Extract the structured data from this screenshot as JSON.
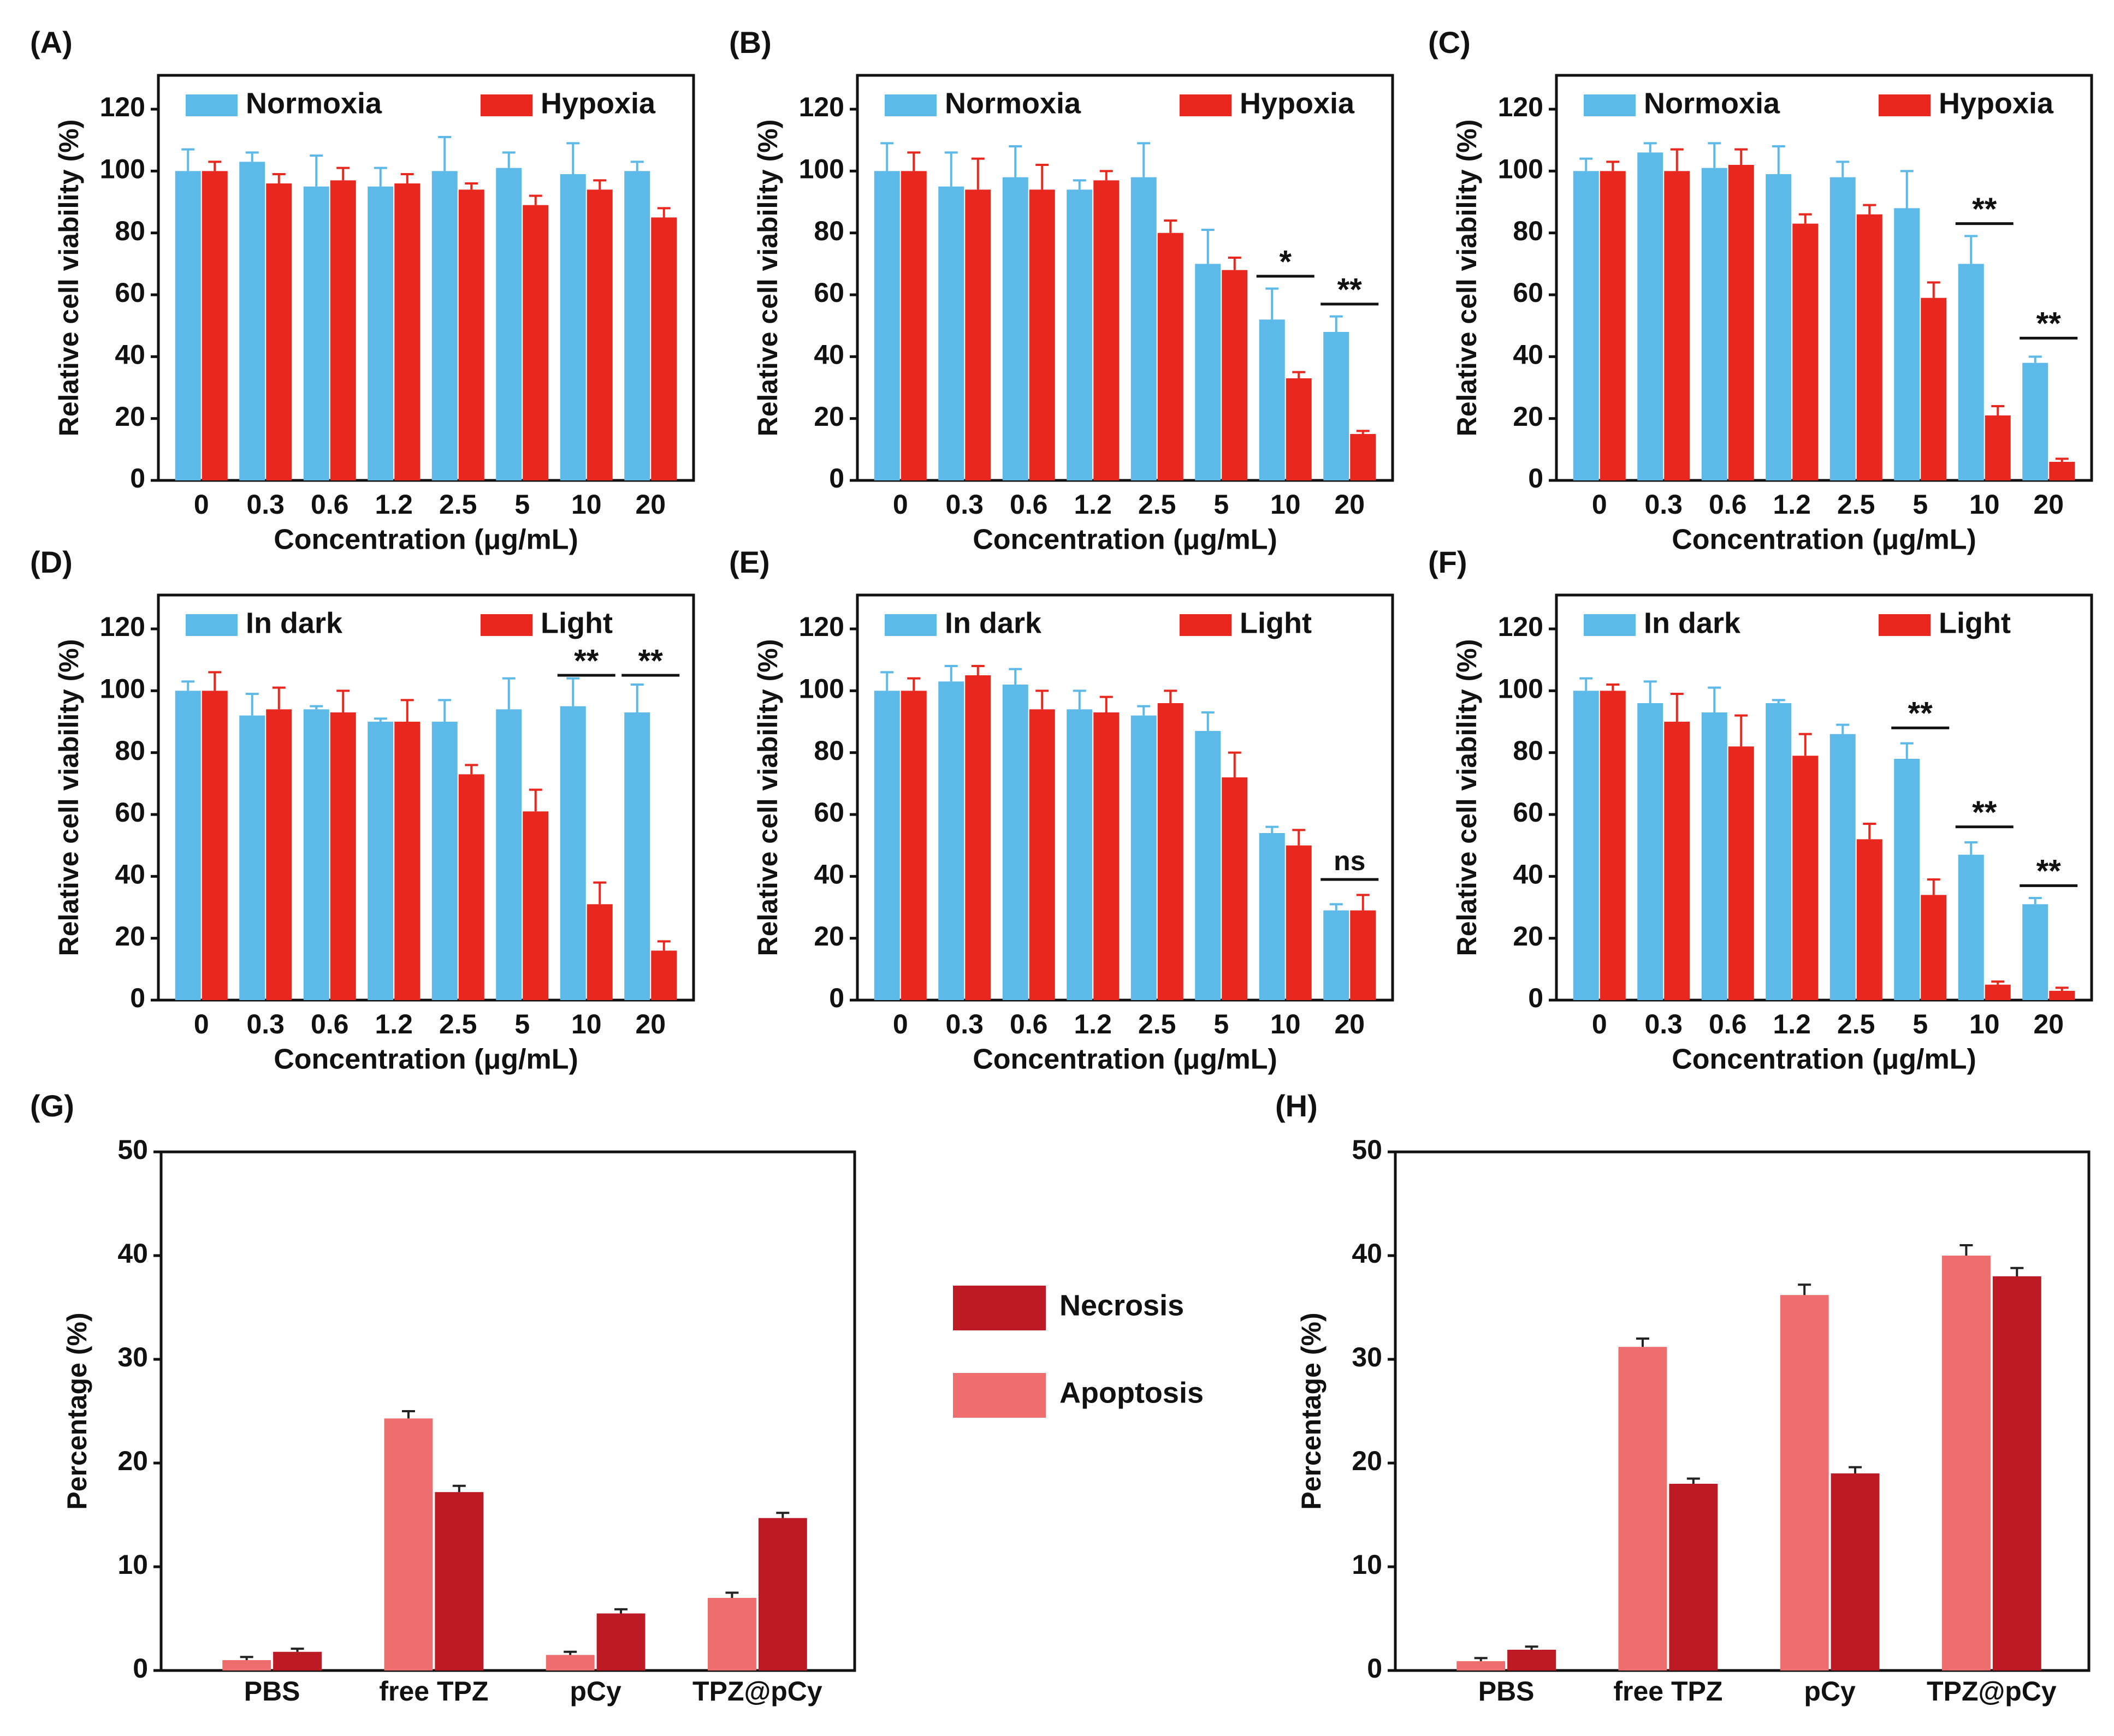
{
  "colors": {
    "normoxia": "#5DB9E8",
    "hypoxia": "#E8281F",
    "apoptosis": "#EE6E70",
    "necrosis": "#BC1A24",
    "error": "#222222"
  },
  "chart_data": [
    {
      "panel": "(A)",
      "type": "bar",
      "xlabel": "Concentration (μg/mL)",
      "ylabel": "Relative cell viability (%)",
      "ylim": [
        0,
        120
      ],
      "yticks": [
        0,
        20,
        40,
        60,
        80,
        100,
        120
      ],
      "categories": [
        "0",
        "0.3",
        "0.6",
        "1.2",
        "2.5",
        "5",
        "10",
        "20"
      ],
      "series": [
        {
          "name": "Normoxia",
          "color": "#5DB9E8",
          "values": [
            100,
            103,
            95,
            95,
            100,
            101,
            99,
            100
          ],
          "errors": [
            7,
            3,
            10,
            6,
            11,
            5,
            10,
            3
          ]
        },
        {
          "name": "Hypoxia",
          "color": "#E8281F",
          "values": [
            100,
            96,
            97,
            96,
            94,
            89,
            94,
            85
          ],
          "errors": [
            3,
            3,
            4,
            3,
            2,
            3,
            3,
            3
          ]
        }
      ],
      "legend": "top",
      "annotations": []
    },
    {
      "panel": "(B)",
      "type": "bar",
      "xlabel": "Concentration (μg/mL)",
      "ylabel": "Relative cell viability (%)",
      "ylim": [
        0,
        120
      ],
      "yticks": [
        0,
        20,
        40,
        60,
        80,
        100,
        120
      ],
      "categories": [
        "0",
        "0.3",
        "0.6",
        "1.2",
        "2.5",
        "5",
        "10",
        "20"
      ],
      "series": [
        {
          "name": "Normoxia",
          "color": "#5DB9E8",
          "values": [
            100,
            95,
            98,
            94,
            98,
            70,
            52,
            48
          ],
          "errors": [
            9,
            11,
            10,
            3,
            11,
            11,
            10,
            5
          ]
        },
        {
          "name": "Hypoxia",
          "color": "#E8281F",
          "values": [
            100,
            94,
            94,
            97,
            80,
            68,
            33,
            15
          ],
          "errors": [
            6,
            10,
            8,
            3,
            4,
            4,
            2,
            1
          ]
        }
      ],
      "legend": "top",
      "annotations": [
        {
          "index": 6,
          "text": "*",
          "y": 66
        },
        {
          "index": 7,
          "text": "**",
          "y": 57
        }
      ]
    },
    {
      "panel": "(C)",
      "type": "bar",
      "xlabel": "Concentration (μg/mL)",
      "ylabel": "Relative cell viability (%)",
      "ylim": [
        0,
        120
      ],
      "yticks": [
        0,
        20,
        40,
        60,
        80,
        100,
        120
      ],
      "categories": [
        "0",
        "0.3",
        "0.6",
        "1.2",
        "2.5",
        "5",
        "10",
        "20"
      ],
      "series": [
        {
          "name": "Normoxia",
          "color": "#5DB9E8",
          "values": [
            100,
            106,
            101,
            99,
            98,
            88,
            70,
            38
          ],
          "errors": [
            4,
            3,
            8,
            9,
            5,
            12,
            9,
            2
          ]
        },
        {
          "name": "Hypoxia",
          "color": "#E8281F",
          "values": [
            100,
            100,
            102,
            83,
            86,
            59,
            21,
            6
          ],
          "errors": [
            3,
            7,
            5,
            3,
            3,
            5,
            3,
            1
          ]
        }
      ],
      "legend": "top",
      "annotations": [
        {
          "index": 6,
          "text": "**",
          "y": 83
        },
        {
          "index": 7,
          "text": "**",
          "y": 46
        }
      ]
    },
    {
      "panel": "(D)",
      "type": "bar",
      "xlabel": "Concentration (μg/mL)",
      "ylabel": "Relative cell viability (%)",
      "ylim": [
        0,
        120
      ],
      "yticks": [
        0,
        20,
        40,
        60,
        80,
        100,
        120
      ],
      "categories": [
        "0",
        "0.3",
        "0.6",
        "1.2",
        "2.5",
        "5",
        "10",
        "20"
      ],
      "series": [
        {
          "name": "In dark",
          "color": "#5DB9E8",
          "values": [
            100,
            92,
            94,
            90,
            90,
            94,
            95,
            93
          ],
          "errors": [
            3,
            7,
            1,
            1,
            7,
            10,
            9,
            9
          ]
        },
        {
          "name": "Light",
          "color": "#E8281F",
          "values": [
            100,
            94,
            93,
            90,
            73,
            61,
            31,
            16
          ],
          "errors": [
            6,
            7,
            7,
            7,
            3,
            7,
            7,
            3
          ]
        }
      ],
      "legend": "top",
      "annotations": [
        {
          "index": 6,
          "text": "**",
          "y": 105
        },
        {
          "index": 7,
          "text": "**",
          "y": 105
        }
      ]
    },
    {
      "panel": "(E)",
      "type": "bar",
      "xlabel": "Concentration (μg/mL)",
      "ylabel": "Relative cell viability (%)",
      "ylim": [
        0,
        120
      ],
      "yticks": [
        0,
        20,
        40,
        60,
        80,
        100,
        120
      ],
      "categories": [
        "0",
        "0.3",
        "0.6",
        "1.2",
        "2.5",
        "5",
        "10",
        "20"
      ],
      "series": [
        {
          "name": "In dark",
          "color": "#5DB9E8",
          "values": [
            100,
            103,
            102,
            94,
            92,
            87,
            54,
            29
          ],
          "errors": [
            6,
            5,
            5,
            6,
            3,
            6,
            2,
            2
          ]
        },
        {
          "name": "Light",
          "color": "#E8281F",
          "values": [
            100,
            105,
            94,
            93,
            96,
            72,
            50,
            29
          ],
          "errors": [
            4,
            3,
            6,
            5,
            4,
            8,
            5,
            5
          ]
        }
      ],
      "legend": "top",
      "annotations": [
        {
          "index": 7,
          "text": "ns",
          "y": 39
        }
      ]
    },
    {
      "panel": "(F)",
      "type": "bar",
      "xlabel": "Concentration (μg/mL)",
      "ylabel": "Relative cell viability (%)",
      "ylim": [
        0,
        120
      ],
      "yticks": [
        0,
        20,
        40,
        60,
        80,
        100,
        120
      ],
      "categories": [
        "0",
        "0.3",
        "0.6",
        "1.2",
        "2.5",
        "5",
        "10",
        "20"
      ],
      "series": [
        {
          "name": "In dark",
          "color": "#5DB9E8",
          "values": [
            100,
            96,
            93,
            96,
            86,
            78,
            47,
            31
          ],
          "errors": [
            4,
            7,
            8,
            1,
            3,
            5,
            4,
            2
          ]
        },
        {
          "name": "Light",
          "color": "#E8281F",
          "values": [
            100,
            90,
            82,
            79,
            52,
            34,
            5,
            3
          ],
          "errors": [
            2,
            9,
            10,
            7,
            5,
            5,
            1,
            1
          ]
        }
      ],
      "legend": "top",
      "annotations": [
        {
          "index": 5,
          "text": "**",
          "y": 88
        },
        {
          "index": 6,
          "text": "**",
          "y": 56
        },
        {
          "index": 7,
          "text": "**",
          "y": 37
        }
      ]
    },
    {
      "panel": "(G)",
      "type": "bar",
      "xlabel": "",
      "ylabel": "Percentage (%)",
      "ylim": [
        0,
        50
      ],
      "yticks": [
        0,
        10,
        20,
        30,
        40,
        50
      ],
      "categories": [
        "PBS",
        "free TPZ",
        "pCy",
        "TPZ@pCy"
      ],
      "series": [
        {
          "name": "Apoptosis",
          "color": "#EE6E70",
          "values": [
            1.0,
            24.3,
            1.5,
            7.0
          ],
          "errors": [
            0.3,
            0.7,
            0.3,
            0.5
          ]
        },
        {
          "name": "Necrosis",
          "color": "#BC1A24",
          "values": [
            1.8,
            17.2,
            5.5,
            14.7
          ],
          "errors": [
            0.3,
            0.6,
            0.4,
            0.5
          ]
        }
      ],
      "legend": "outside-right",
      "annotations": []
    },
    {
      "panel": "(H)",
      "type": "bar",
      "xlabel": "",
      "ylabel": "Percentage (%)",
      "ylim": [
        0,
        50
      ],
      "yticks": [
        0,
        10,
        20,
        30,
        40,
        50
      ],
      "categories": [
        "PBS",
        "free TPZ",
        "pCy",
        "TPZ@pCy"
      ],
      "series": [
        {
          "name": "Apoptosis",
          "color": "#EE6E70",
          "values": [
            0.9,
            31.2,
            36.2,
            40.0
          ],
          "errors": [
            0.3,
            0.8,
            1.0,
            1.0
          ]
        },
        {
          "name": "Necrosis",
          "color": "#BC1A24",
          "values": [
            2.0,
            18.0,
            19.0,
            38.0
          ],
          "errors": [
            0.3,
            0.5,
            0.6,
            0.8
          ]
        }
      ],
      "legend": "none",
      "annotations": []
    }
  ],
  "shared_legend": {
    "items": [
      {
        "label": "Necrosis",
        "color": "#BC1A24"
      },
      {
        "label": "Apoptosis",
        "color": "#EE6E70"
      }
    ]
  }
}
